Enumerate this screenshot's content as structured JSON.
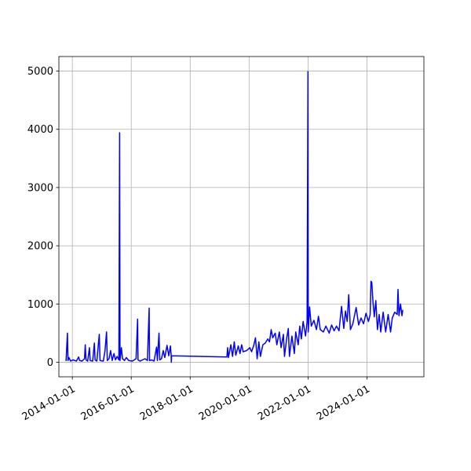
{
  "chart_data": {
    "type": "line",
    "title": "",
    "xlabel": "",
    "ylabel": "",
    "x_axis": {
      "scale": "date",
      "range": [
        "2013-07-18",
        "2025-12-07"
      ],
      "ticks": [
        "2014-01-01",
        "2016-01-01",
        "2018-01-01",
        "2020-01-01",
        "2022-01-01",
        "2024-01-01"
      ],
      "tick_label_rotation_deg": 30
    },
    "y_axis": {
      "range": [
        -250,
        5250
      ],
      "ticks": [
        0,
        1000,
        2000,
        3000,
        4000,
        5000
      ]
    },
    "grid": true,
    "legend": "none",
    "series": [
      {
        "color": "#0000ff",
        "points": [
          [
            "2013-10-15",
            20
          ],
          [
            "2013-10-25",
            300
          ],
          [
            "2013-11-01",
            500
          ],
          [
            "2013-11-08",
            30
          ],
          [
            "2013-11-20",
            80
          ],
          [
            "2013-12-10",
            20
          ],
          [
            "2014-01-10",
            40
          ],
          [
            "2014-02-20",
            20
          ],
          [
            "2014-03-20",
            90
          ],
          [
            "2014-04-01",
            30
          ],
          [
            "2014-05-01",
            20
          ],
          [
            "2014-06-01",
            60
          ],
          [
            "2014-06-10",
            300
          ],
          [
            "2014-06-20",
            40
          ],
          [
            "2014-07-10",
            20
          ],
          [
            "2014-08-01",
            250
          ],
          [
            "2014-08-10",
            30
          ],
          [
            "2014-09-10",
            20
          ],
          [
            "2014-10-01",
            330
          ],
          [
            "2014-10-10",
            40
          ],
          [
            "2014-11-01",
            20
          ],
          [
            "2014-12-01",
            480
          ],
          [
            "2014-12-10",
            30
          ],
          [
            "2015-01-20",
            20
          ],
          [
            "2015-02-10",
            200
          ],
          [
            "2015-03-01",
            520
          ],
          [
            "2015-03-10",
            30
          ],
          [
            "2015-04-01",
            60
          ],
          [
            "2015-04-20",
            200
          ],
          [
            "2015-05-10",
            30
          ],
          [
            "2015-06-01",
            150
          ],
          [
            "2015-06-20",
            40
          ],
          [
            "2015-07-10",
            100
          ],
          [
            "2015-08-01",
            40
          ],
          [
            "2015-08-10",
            3940
          ],
          [
            "2015-08-15",
            30
          ],
          [
            "2015-09-01",
            250
          ],
          [
            "2015-09-15",
            60
          ],
          [
            "2015-10-10",
            30
          ],
          [
            "2015-11-01",
            80
          ],
          [
            "2015-12-01",
            30
          ],
          [
            "2016-01-15",
            20
          ],
          [
            "2016-03-01",
            60
          ],
          [
            "2016-03-20",
            740
          ],
          [
            "2016-03-25",
            40
          ],
          [
            "2016-04-20",
            20
          ],
          [
            "2016-05-20",
            40
          ],
          [
            "2016-06-20",
            60
          ],
          [
            "2016-07-20",
            30
          ],
          [
            "2016-08-10",
            930
          ],
          [
            "2016-08-15",
            30
          ],
          [
            "2016-09-10",
            40
          ],
          [
            "2016-10-10",
            20
          ],
          [
            "2016-11-10",
            260
          ],
          [
            "2016-11-20",
            30
          ],
          [
            "2016-12-10",
            500
          ],
          [
            "2016-12-20",
            40
          ],
          [
            "2017-01-10",
            60
          ],
          [
            "2017-02-01",
            200
          ],
          [
            "2017-02-20",
            80
          ],
          [
            "2017-03-20",
            290
          ],
          [
            "2017-04-10",
            110
          ],
          [
            "2017-05-01",
            280
          ],
          [
            "2017-05-10",
            120
          ],
          [
            "2017-05-12",
            0
          ],
          [
            "2017-05-15",
            110
          ],
          [
            "2019-04-01",
            90
          ],
          [
            "2019-04-10",
            250
          ],
          [
            "2019-04-20",
            80
          ],
          [
            "2019-05-20",
            300
          ],
          [
            "2019-06-10",
            100
          ],
          [
            "2019-07-01",
            350
          ],
          [
            "2019-07-20",
            120
          ],
          [
            "2019-08-20",
            280
          ],
          [
            "2019-09-10",
            150
          ],
          [
            "2019-10-01",
            300
          ],
          [
            "2019-10-20",
            180
          ],
          [
            "2019-12-01",
            200
          ],
          [
            "2020-01-10",
            250
          ],
          [
            "2020-02-01",
            180
          ],
          [
            "2020-03-01",
            300
          ],
          [
            "2020-03-20",
            420
          ],
          [
            "2020-04-10",
            60
          ],
          [
            "2020-05-01",
            350
          ],
          [
            "2020-05-20",
            100
          ],
          [
            "2020-06-20",
            300
          ],
          [
            "2020-07-20",
            330
          ],
          [
            "2020-08-20",
            400
          ],
          [
            "2020-09-10",
            350
          ],
          [
            "2020-10-01",
            560
          ],
          [
            "2020-10-20",
            420
          ],
          [
            "2020-11-20",
            500
          ],
          [
            "2020-12-10",
            300
          ],
          [
            "2021-01-10",
            520
          ],
          [
            "2021-02-01",
            250
          ],
          [
            "2021-03-01",
            480
          ],
          [
            "2021-03-15",
            100
          ],
          [
            "2021-04-10",
            400
          ],
          [
            "2021-05-01",
            580
          ],
          [
            "2021-05-15",
            100
          ],
          [
            "2021-06-15",
            450
          ],
          [
            "2021-07-15",
            150
          ],
          [
            "2021-08-01",
            520
          ],
          [
            "2021-09-01",
            300
          ],
          [
            "2021-09-20",
            620
          ],
          [
            "2021-10-10",
            400
          ],
          [
            "2021-11-01",
            700
          ],
          [
            "2021-12-01",
            450
          ],
          [
            "2021-12-20",
            700
          ],
          [
            "2021-12-31",
            4990
          ],
          [
            "2022-01-03",
            520
          ],
          [
            "2022-01-20",
            950
          ],
          [
            "2022-02-10",
            620
          ],
          [
            "2022-03-15",
            720
          ],
          [
            "2022-04-15",
            560
          ],
          [
            "2022-05-10",
            790
          ],
          [
            "2022-06-01",
            560
          ],
          [
            "2022-07-10",
            520
          ],
          [
            "2022-08-10",
            620
          ],
          [
            "2022-09-20",
            500
          ],
          [
            "2022-10-20",
            640
          ],
          [
            "2022-11-20",
            540
          ],
          [
            "2022-12-20",
            620
          ],
          [
            "2023-01-20",
            540
          ],
          [
            "2023-02-20",
            960
          ],
          [
            "2023-03-20",
            580
          ],
          [
            "2023-04-10",
            880
          ],
          [
            "2023-05-01",
            700
          ],
          [
            "2023-05-20",
            1160
          ],
          [
            "2023-06-10",
            560
          ],
          [
            "2023-07-10",
            660
          ],
          [
            "2023-08-20",
            940
          ],
          [
            "2023-09-20",
            640
          ],
          [
            "2023-10-20",
            760
          ],
          [
            "2023-11-20",
            660
          ],
          [
            "2023-12-20",
            840
          ],
          [
            "2024-01-20",
            700
          ],
          [
            "2024-02-10",
            820
          ],
          [
            "2024-02-20",
            1390
          ],
          [
            "2024-03-01",
            1370
          ],
          [
            "2024-03-15",
            1050
          ],
          [
            "2024-04-01",
            780
          ],
          [
            "2024-04-20",
            1060
          ],
          [
            "2024-05-10",
            560
          ],
          [
            "2024-06-01",
            820
          ],
          [
            "2024-06-20",
            520
          ],
          [
            "2024-07-20",
            860
          ],
          [
            "2024-08-20",
            520
          ],
          [
            "2024-09-20",
            820
          ],
          [
            "2024-10-20",
            520
          ],
          [
            "2024-11-10",
            760
          ],
          [
            "2024-12-10",
            860
          ],
          [
            "2025-01-10",
            820
          ],
          [
            "2025-01-20",
            1250
          ],
          [
            "2025-02-01",
            800
          ],
          [
            "2025-02-20",
            1000
          ],
          [
            "2025-03-10",
            800
          ],
          [
            "2025-03-20",
            900
          ]
        ]
      }
    ]
  }
}
